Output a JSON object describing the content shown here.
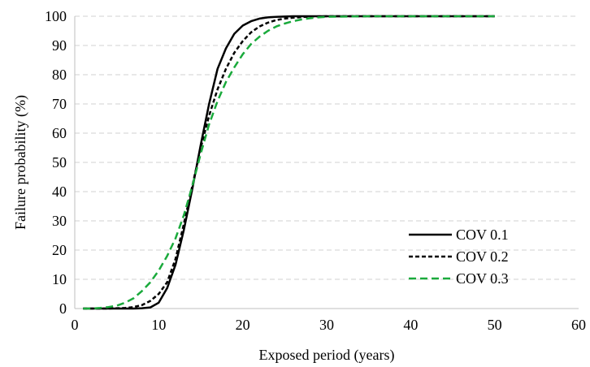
{
  "chart_data": {
    "type": "line",
    "title": "",
    "xlabel": "Exposed period (years)",
    "ylabel": "Failure probability (%)",
    "xlim": [
      0,
      60
    ],
    "ylim": [
      0,
      100
    ],
    "xticks": [
      0,
      10,
      20,
      30,
      40,
      50,
      60
    ],
    "yticks": [
      0,
      10,
      20,
      30,
      40,
      50,
      60,
      70,
      80,
      90,
      100
    ],
    "grid": "horizontal dashed",
    "legend_position": "lower-right",
    "series": [
      {
        "name": "COV 0.1",
        "color": "#000000",
        "dash": "solid",
        "x": [
          1,
          2,
          3,
          4,
          5,
          6,
          7,
          8,
          9,
          10,
          11,
          12,
          13,
          14,
          15,
          16,
          17,
          18,
          19,
          20,
          21,
          22,
          23,
          24,
          25,
          26,
          28,
          30,
          35,
          40,
          45,
          50
        ],
        "y": [
          0,
          0,
          0,
          0,
          0,
          0,
          0,
          0.1,
          0.4,
          2,
          7,
          15,
          27,
          41,
          56,
          70,
          82,
          89,
          94,
          96.8,
          98.3,
          99.2,
          99.6,
          99.8,
          99.9,
          100,
          100,
          100,
          100,
          100,
          100,
          100
        ]
      },
      {
        "name": "COV 0.2",
        "color": "#000000",
        "dash": "dashed",
        "x": [
          1,
          2,
          3,
          4,
          5,
          6,
          7,
          8,
          9,
          10,
          11,
          12,
          13,
          14,
          15,
          16,
          17,
          18,
          19,
          20,
          21,
          22,
          23,
          24,
          25,
          26,
          27,
          28,
          30,
          35,
          40,
          45,
          50
        ],
        "y": [
          0,
          0,
          0,
          0,
          0.1,
          0.2,
          0.5,
          1.2,
          2.6,
          5,
          9,
          17,
          29,
          42,
          55,
          66,
          75,
          82,
          87.5,
          91.5,
          94.5,
          96.5,
          97.8,
          98.7,
          99.2,
          99.5,
          99.7,
          99.9,
          100,
          100,
          100,
          100,
          100
        ]
      },
      {
        "name": "COV 0.3",
        "color": "#1aaa3c",
        "dash": "dashed",
        "x": [
          1,
          2,
          3,
          4,
          5,
          6,
          7,
          8,
          9,
          10,
          11,
          12,
          13,
          14,
          15,
          16,
          17,
          18,
          19,
          20,
          21,
          22,
          23,
          24,
          25,
          26,
          27,
          28,
          29,
          30,
          35,
          40,
          45,
          50
        ],
        "y": [
          0,
          0,
          0.2,
          0.5,
          1,
          2,
          3.5,
          6,
          9,
          13,
          18,
          24,
          32,
          42,
          53,
          63,
          71,
          77.5,
          82.5,
          87,
          90.5,
          93,
          95,
          96.5,
          97.5,
          98.3,
          98.9,
          99.3,
          99.6,
          99.8,
          100,
          100,
          100,
          100
        ]
      }
    ]
  }
}
